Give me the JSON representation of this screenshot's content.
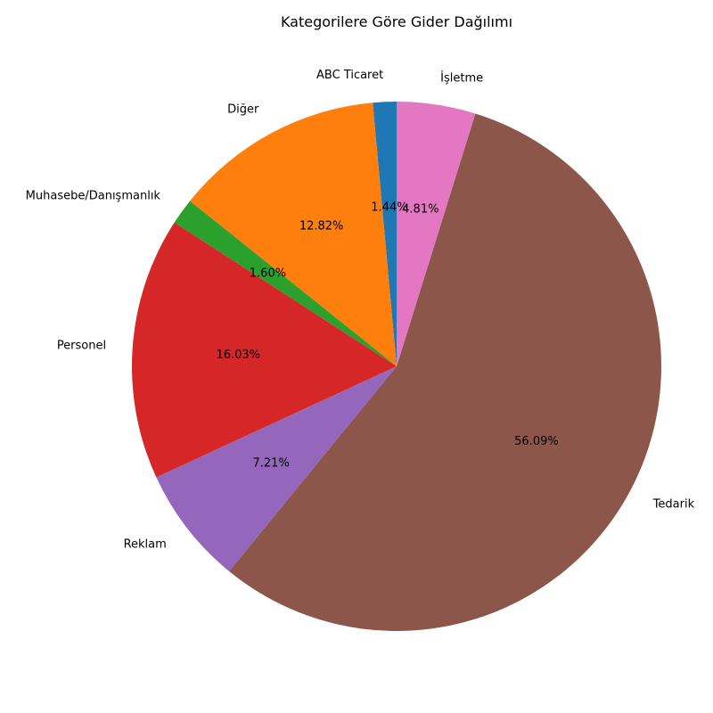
{
  "chart_data": {
    "type": "pie",
    "title": "Kategorilere Göre Gider Dağılımı",
    "categories": [
      "ABC Ticaret",
      "Diğer",
      "Muhasebe/Danışmanlık",
      "Personel",
      "Reklam",
      "Tedarik",
      "İşletme"
    ],
    "values": [
      1.44,
      12.82,
      1.6,
      16.03,
      7.21,
      56.09,
      4.81
    ],
    "value_labels": [
      "1.44%",
      "12.82%",
      "1.60%",
      "16.03%",
      "7.21%",
      "56.09%",
      "4.81%"
    ],
    "colors": [
      "#1f77b4",
      "#ff7f0e",
      "#2ca02c",
      "#d62728",
      "#9467bd",
      "#8c564b",
      "#e377c2"
    ],
    "start_angle_deg": 90,
    "direction": "counterclockwise",
    "legend": "none"
  }
}
